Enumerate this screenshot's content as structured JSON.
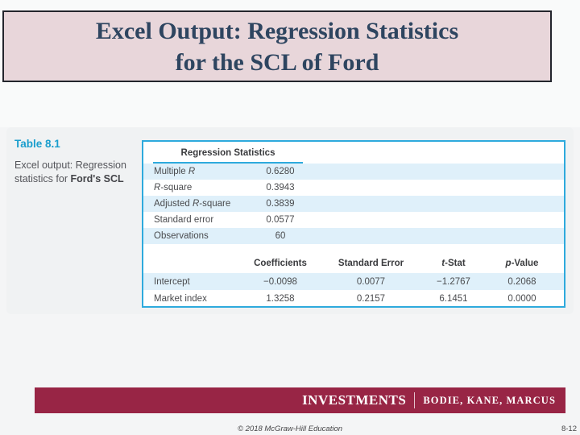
{
  "title": {
    "line1": "Excel Output: Regression Statistics",
    "line2": "for the SCL of Ford"
  },
  "sidebar": {
    "table_label": "Table 8.1",
    "caption_pre": "Excel output: Regression statistics for ",
    "caption_bold": "Ford's SCL"
  },
  "table": {
    "section_header": "Regression Statistics",
    "stats": [
      {
        "pre": "Multiple ",
        "it": "R",
        "post": "",
        "value": "0.6280"
      },
      {
        "pre": "",
        "it": "R",
        "post": "-square",
        "value": "0.3943"
      },
      {
        "pre": "Adjusted ",
        "it": "R",
        "post": "-square",
        "value": "0.3839"
      },
      {
        "pre": "Standard error",
        "it": "",
        "post": "",
        "value": "0.0577"
      },
      {
        "pre": "Observations",
        "it": "",
        "post": "",
        "value": "60"
      }
    ],
    "columns": [
      {
        "it": "",
        "post": "Coefficients"
      },
      {
        "it": "",
        "post": "Standard Error"
      },
      {
        "it": "t",
        "post": "-Stat"
      },
      {
        "it": "p",
        "post": "-Value"
      }
    ],
    "coef_rows": [
      {
        "label": "Intercept",
        "coefficient": "−0.0098",
        "std_error": "0.0077",
        "t_stat": "−1.2767",
        "p_value": "0.2068"
      },
      {
        "label": "Market index",
        "coefficient": "1.3258",
        "std_error": "0.2157",
        "t_stat": "6.1451",
        "p_value": "0.0000"
      }
    ]
  },
  "footer": {
    "brand": "INVESTMENTS",
    "authors": "BODIE, KANE, MARCUS",
    "copyright": "© 2018 McGraw-Hill Education",
    "page_number": "8-12"
  },
  "colors": {
    "accent_teal": "#1a9ecd",
    "table_border": "#2eaadd",
    "row_highlight": "#dff0fa",
    "footer_maroon": "#982545",
    "title_bg": "#e8d6da",
    "title_text": "#2e4560"
  }
}
